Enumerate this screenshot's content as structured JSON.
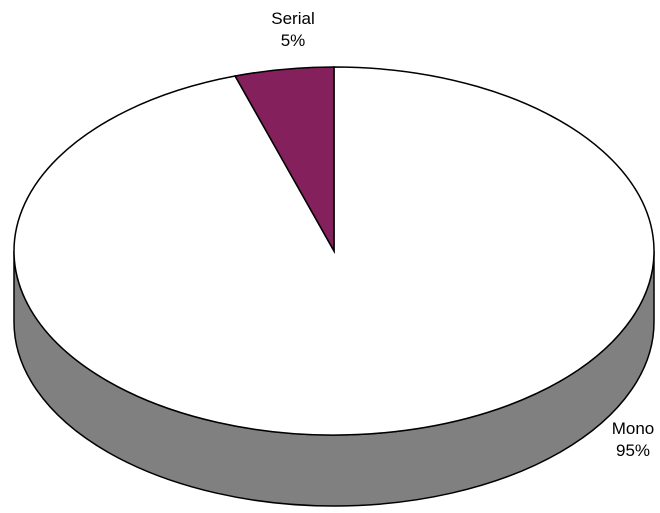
{
  "chart_data": {
    "type": "pie",
    "style": "3d",
    "categories": [
      "Mono",
      "Serial"
    ],
    "values": [
      95,
      5
    ],
    "labels": [
      "Mono",
      "Serial"
    ],
    "percent_labels": [
      "95%",
      "5%"
    ],
    "colors": {
      "Mono": "#ffffff",
      "Serial": "#84205c",
      "side": "#808080",
      "edge": "#000000"
    },
    "legend": "none",
    "title": ""
  }
}
